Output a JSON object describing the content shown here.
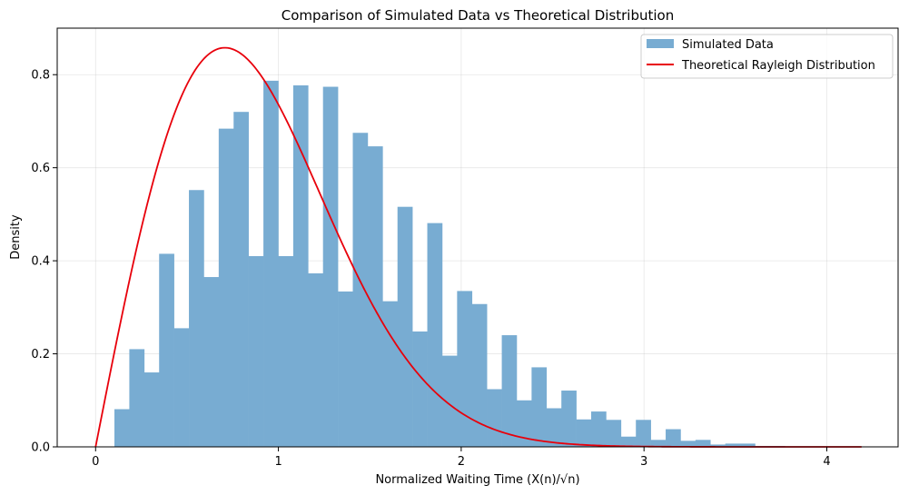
{
  "chart_data": {
    "type": "bar",
    "title": "Comparison of Simulated Data vs Theoretical Distribution",
    "xlabel": "Normalized Waiting Time (X(n)/√n)",
    "ylabel": "Density",
    "xlim": [
      -0.21,
      4.39
    ],
    "ylim": [
      0,
      0.9
    ],
    "xticks": [
      0,
      1,
      2,
      3,
      4
    ],
    "yticks": [
      0.0,
      0.2,
      0.4,
      0.6,
      0.8
    ],
    "xtick_labels": [
      "0",
      "1",
      "2",
      "3",
      "4"
    ],
    "ytick_labels": [
      "0.0",
      "0.2",
      "0.4",
      "0.6",
      "0.8"
    ],
    "grid": true,
    "legend_position": "top-right",
    "colors": {
      "histogram": "#78acd2",
      "curve": "#e8000b"
    },
    "histogram": {
      "name": "Simulated Data",
      "bin_start": 0.103,
      "bin_width": 0.0815,
      "values": [
        0.081,
        0.21,
        0.16,
        0.415,
        0.255,
        0.552,
        0.365,
        0.684,
        0.72,
        0.41,
        0.787,
        0.41,
        0.777,
        0.373,
        0.774,
        0.334,
        0.675,
        0.646,
        0.313,
        0.516,
        0.248,
        0.481,
        0.196,
        0.335,
        0.307,
        0.124,
        0.24,
        0.1,
        0.171,
        0.083,
        0.121,
        0.059,
        0.076,
        0.058,
        0.022,
        0.058,
        0.015,
        0.038,
        0.013,
        0.015,
        0.005,
        0.007,
        0.007,
        0.002,
        0.002,
        0.001,
        0.001,
        0.0,
        0.0,
        0.001,
        0.001,
        0.001
      ]
    },
    "curve": {
      "name": "Theoretical Rayleigh Distribution",
      "function": "x*exp(-x^2/2)/sigma^2 style Rayleigh with peak near x=0.7",
      "sigma": 0.707,
      "x_range": [
        0,
        4.19
      ]
    }
  }
}
